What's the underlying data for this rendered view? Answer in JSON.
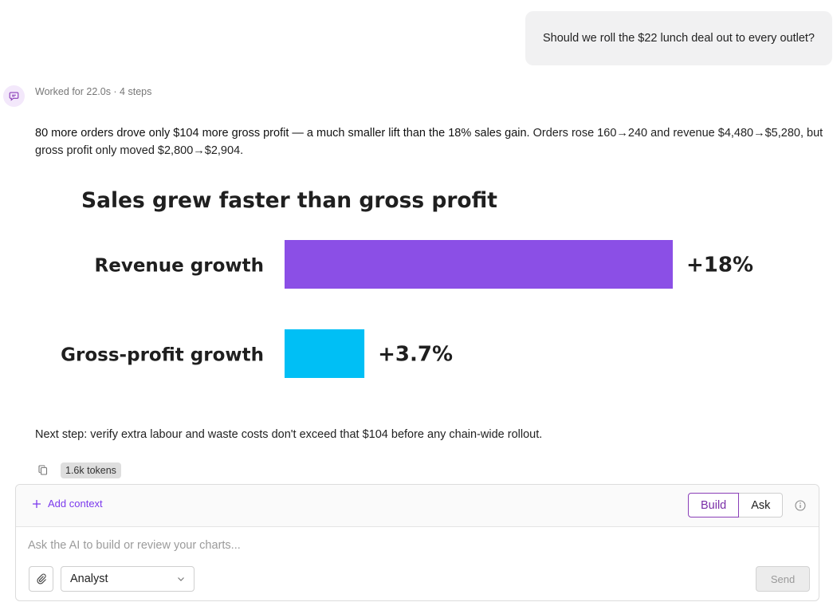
{
  "user_message": "Should we roll the $22 lunch deal out to every outlet?",
  "assistant": {
    "meta": "Worked for 22.0s · 4 steps",
    "answer_lead": "80 more orders drove only $104 more gross profit — a much smaller lift than the 18% sales gain.",
    "answer_rest": " Orders rose 160→240 and revenue $4,480→$5,280, but gross profit only moved $2,800→$2,904.",
    "next_step": "Next step: verify extra labour and waste costs don't exceed that $104 before any chain-wide rollout.",
    "tokens": "1.6k tokens"
  },
  "chart_data": {
    "type": "bar",
    "orientation": "horizontal",
    "title": "Sales grew faster than gross profit",
    "categories": [
      "Revenue growth",
      "Gross-profit growth"
    ],
    "values": [
      18,
      3.7
    ],
    "data_labels": [
      "+18%",
      "+3.7%"
    ],
    "colors": [
      "#8b4fe6",
      "#00bff5"
    ],
    "xlim": [
      0,
      18
    ],
    "grid": false,
    "legend": "none"
  },
  "composer": {
    "add_context": "Add context",
    "modes": [
      "Build",
      "Ask"
    ],
    "active_mode": "Build",
    "placeholder": "Ask the AI to build or review your charts...",
    "value": "",
    "agent": "Analyst",
    "send": "Send"
  },
  "colors": {
    "accent": "#7c3aed",
    "active_border": "#8a3fb8"
  },
  "icons": {
    "avatar": "chat-bubble-icon",
    "copy": "copy-icon",
    "plus": "plus-icon",
    "info": "info-icon",
    "attach": "paperclip-icon",
    "chevron": "chevron-down-icon"
  }
}
